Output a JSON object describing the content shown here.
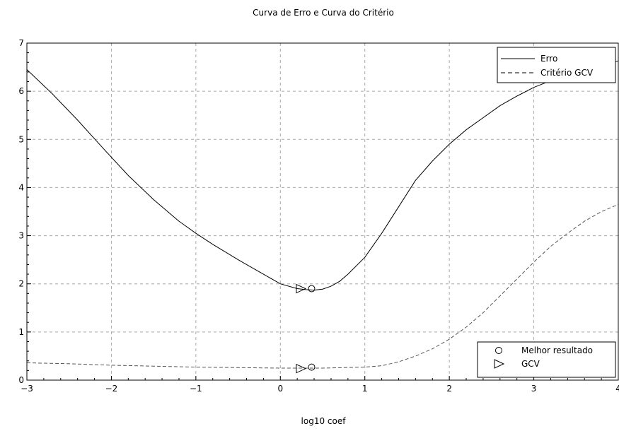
{
  "chart_data": {
    "type": "line",
    "title": "Curva de Erro e Curva do Critério",
    "xlabel": "log10 coef",
    "ylabel": "",
    "xlim": [
      -3,
      4
    ],
    "ylim": [
      0,
      7
    ],
    "x_ticks": [
      "−3",
      "−2",
      "−1",
      "0",
      "1",
      "2",
      "3",
      "4"
    ],
    "y_ticks": [
      "0",
      "1",
      "2",
      "3",
      "4",
      "5",
      "6",
      "7"
    ],
    "grid": true,
    "series": [
      {
        "name": "Erro",
        "style": "solid",
        "x": [
          -3,
          -2.7,
          -2.4,
          -2.1,
          -1.8,
          -1.5,
          -1.2,
          -1.0,
          -0.8,
          -0.5,
          -0.2,
          0.0,
          0.2,
          0.3,
          0.4,
          0.5,
          0.6,
          0.7,
          0.8,
          1.0,
          1.2,
          1.4,
          1.6,
          1.8,
          2.0,
          2.2,
          2.4,
          2.6,
          2.8,
          3.0,
          3.2,
          3.4,
          3.6,
          3.8,
          4.0
        ],
        "y": [
          6.45,
          5.95,
          5.4,
          4.82,
          4.25,
          3.75,
          3.3,
          3.05,
          2.82,
          2.5,
          2.2,
          2.0,
          1.9,
          1.88,
          1.87,
          1.89,
          1.95,
          2.05,
          2.2,
          2.55,
          3.05,
          3.6,
          4.15,
          4.55,
          4.9,
          5.2,
          5.45,
          5.7,
          5.9,
          6.08,
          6.22,
          6.35,
          6.45,
          6.55,
          6.63
        ]
      },
      {
        "name": "Critério GCV",
        "style": "dashed",
        "x": [
          -3,
          -2.5,
          -2.0,
          -1.5,
          -1.0,
          -0.5,
          0.0,
          0.5,
          1.0,
          1.2,
          1.4,
          1.6,
          1.8,
          2.0,
          2.2,
          2.4,
          2.6,
          2.8,
          3.0,
          3.2,
          3.4,
          3.6,
          3.8,
          4.0
        ],
        "y": [
          0.36,
          0.34,
          0.31,
          0.29,
          0.27,
          0.26,
          0.25,
          0.25,
          0.27,
          0.3,
          0.38,
          0.5,
          0.65,
          0.85,
          1.1,
          1.4,
          1.75,
          2.1,
          2.45,
          2.78,
          3.05,
          3.3,
          3.5,
          3.65
        ]
      }
    ],
    "markers": [
      {
        "name": "Melhor resultado",
        "shape": "circle",
        "points": [
          [
            0.37,
            1.9
          ],
          [
            0.37,
            0.27
          ]
        ]
      },
      {
        "name": "GCV",
        "shape": "triangle-right",
        "points": [
          [
            0.24,
            1.9
          ],
          [
            0.24,
            0.24
          ]
        ]
      }
    ],
    "legend_lines_position": "top-right",
    "legend_markers_position": "bottom-right"
  }
}
